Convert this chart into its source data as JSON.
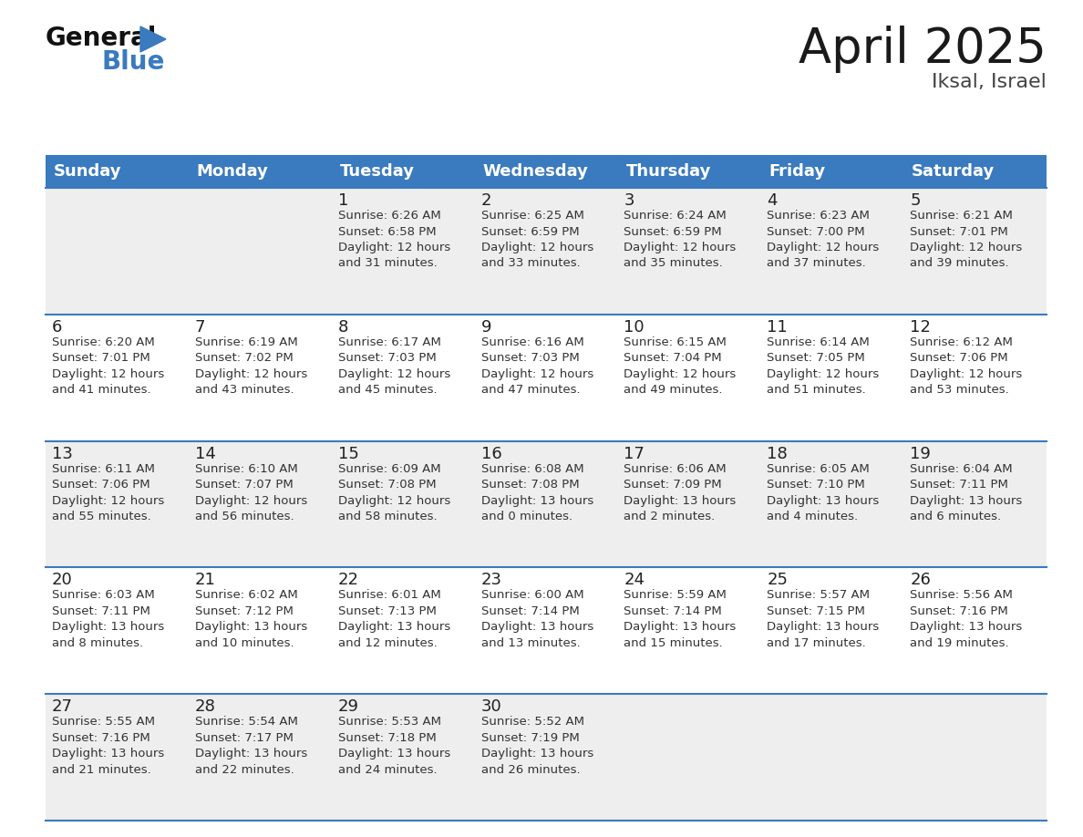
{
  "title": "April 2025",
  "subtitle": "Iksal, Israel",
  "header_bg_color": "#3a7abf",
  "header_text_color": "#ffffff",
  "day_names": [
    "Sunday",
    "Monday",
    "Tuesday",
    "Wednesday",
    "Thursday",
    "Friday",
    "Saturday"
  ],
  "row_bg_even": "#eeeeee",
  "row_bg_odd": "#ffffff",
  "date_color": "#222222",
  "info_color": "#333333",
  "grid_line_color": "#3a7abf",
  "logo_triangle_color": "#3a7abf",
  "title_color": "#1a1a1a",
  "subtitle_color": "#444444",
  "calendar": [
    [
      {
        "day": "",
        "info": ""
      },
      {
        "day": "",
        "info": ""
      },
      {
        "day": "1",
        "info": "Sunrise: 6:26 AM\nSunset: 6:58 PM\nDaylight: 12 hours\nand 31 minutes."
      },
      {
        "day": "2",
        "info": "Sunrise: 6:25 AM\nSunset: 6:59 PM\nDaylight: 12 hours\nand 33 minutes."
      },
      {
        "day": "3",
        "info": "Sunrise: 6:24 AM\nSunset: 6:59 PM\nDaylight: 12 hours\nand 35 minutes."
      },
      {
        "day": "4",
        "info": "Sunrise: 6:23 AM\nSunset: 7:00 PM\nDaylight: 12 hours\nand 37 minutes."
      },
      {
        "day": "5",
        "info": "Sunrise: 6:21 AM\nSunset: 7:01 PM\nDaylight: 12 hours\nand 39 minutes."
      }
    ],
    [
      {
        "day": "6",
        "info": "Sunrise: 6:20 AM\nSunset: 7:01 PM\nDaylight: 12 hours\nand 41 minutes."
      },
      {
        "day": "7",
        "info": "Sunrise: 6:19 AM\nSunset: 7:02 PM\nDaylight: 12 hours\nand 43 minutes."
      },
      {
        "day": "8",
        "info": "Sunrise: 6:17 AM\nSunset: 7:03 PM\nDaylight: 12 hours\nand 45 minutes."
      },
      {
        "day": "9",
        "info": "Sunrise: 6:16 AM\nSunset: 7:03 PM\nDaylight: 12 hours\nand 47 minutes."
      },
      {
        "day": "10",
        "info": "Sunrise: 6:15 AM\nSunset: 7:04 PM\nDaylight: 12 hours\nand 49 minutes."
      },
      {
        "day": "11",
        "info": "Sunrise: 6:14 AM\nSunset: 7:05 PM\nDaylight: 12 hours\nand 51 minutes."
      },
      {
        "day": "12",
        "info": "Sunrise: 6:12 AM\nSunset: 7:06 PM\nDaylight: 12 hours\nand 53 minutes."
      }
    ],
    [
      {
        "day": "13",
        "info": "Sunrise: 6:11 AM\nSunset: 7:06 PM\nDaylight: 12 hours\nand 55 minutes."
      },
      {
        "day": "14",
        "info": "Sunrise: 6:10 AM\nSunset: 7:07 PM\nDaylight: 12 hours\nand 56 minutes."
      },
      {
        "day": "15",
        "info": "Sunrise: 6:09 AM\nSunset: 7:08 PM\nDaylight: 12 hours\nand 58 minutes."
      },
      {
        "day": "16",
        "info": "Sunrise: 6:08 AM\nSunset: 7:08 PM\nDaylight: 13 hours\nand 0 minutes."
      },
      {
        "day": "17",
        "info": "Sunrise: 6:06 AM\nSunset: 7:09 PM\nDaylight: 13 hours\nand 2 minutes."
      },
      {
        "day": "18",
        "info": "Sunrise: 6:05 AM\nSunset: 7:10 PM\nDaylight: 13 hours\nand 4 minutes."
      },
      {
        "day": "19",
        "info": "Sunrise: 6:04 AM\nSunset: 7:11 PM\nDaylight: 13 hours\nand 6 minutes."
      }
    ],
    [
      {
        "day": "20",
        "info": "Sunrise: 6:03 AM\nSunset: 7:11 PM\nDaylight: 13 hours\nand 8 minutes."
      },
      {
        "day": "21",
        "info": "Sunrise: 6:02 AM\nSunset: 7:12 PM\nDaylight: 13 hours\nand 10 minutes."
      },
      {
        "day": "22",
        "info": "Sunrise: 6:01 AM\nSunset: 7:13 PM\nDaylight: 13 hours\nand 12 minutes."
      },
      {
        "day": "23",
        "info": "Sunrise: 6:00 AM\nSunset: 7:14 PM\nDaylight: 13 hours\nand 13 minutes."
      },
      {
        "day": "24",
        "info": "Sunrise: 5:59 AM\nSunset: 7:14 PM\nDaylight: 13 hours\nand 15 minutes."
      },
      {
        "day": "25",
        "info": "Sunrise: 5:57 AM\nSunset: 7:15 PM\nDaylight: 13 hours\nand 17 minutes."
      },
      {
        "day": "26",
        "info": "Sunrise: 5:56 AM\nSunset: 7:16 PM\nDaylight: 13 hours\nand 19 minutes."
      }
    ],
    [
      {
        "day": "27",
        "info": "Sunrise: 5:55 AM\nSunset: 7:16 PM\nDaylight: 13 hours\nand 21 minutes."
      },
      {
        "day": "28",
        "info": "Sunrise: 5:54 AM\nSunset: 7:17 PM\nDaylight: 13 hours\nand 22 minutes."
      },
      {
        "day": "29",
        "info": "Sunrise: 5:53 AM\nSunset: 7:18 PM\nDaylight: 13 hours\nand 24 minutes."
      },
      {
        "day": "30",
        "info": "Sunrise: 5:52 AM\nSunset: 7:19 PM\nDaylight: 13 hours\nand 26 minutes."
      },
      {
        "day": "",
        "info": ""
      },
      {
        "day": "",
        "info": ""
      },
      {
        "day": "",
        "info": ""
      }
    ]
  ]
}
